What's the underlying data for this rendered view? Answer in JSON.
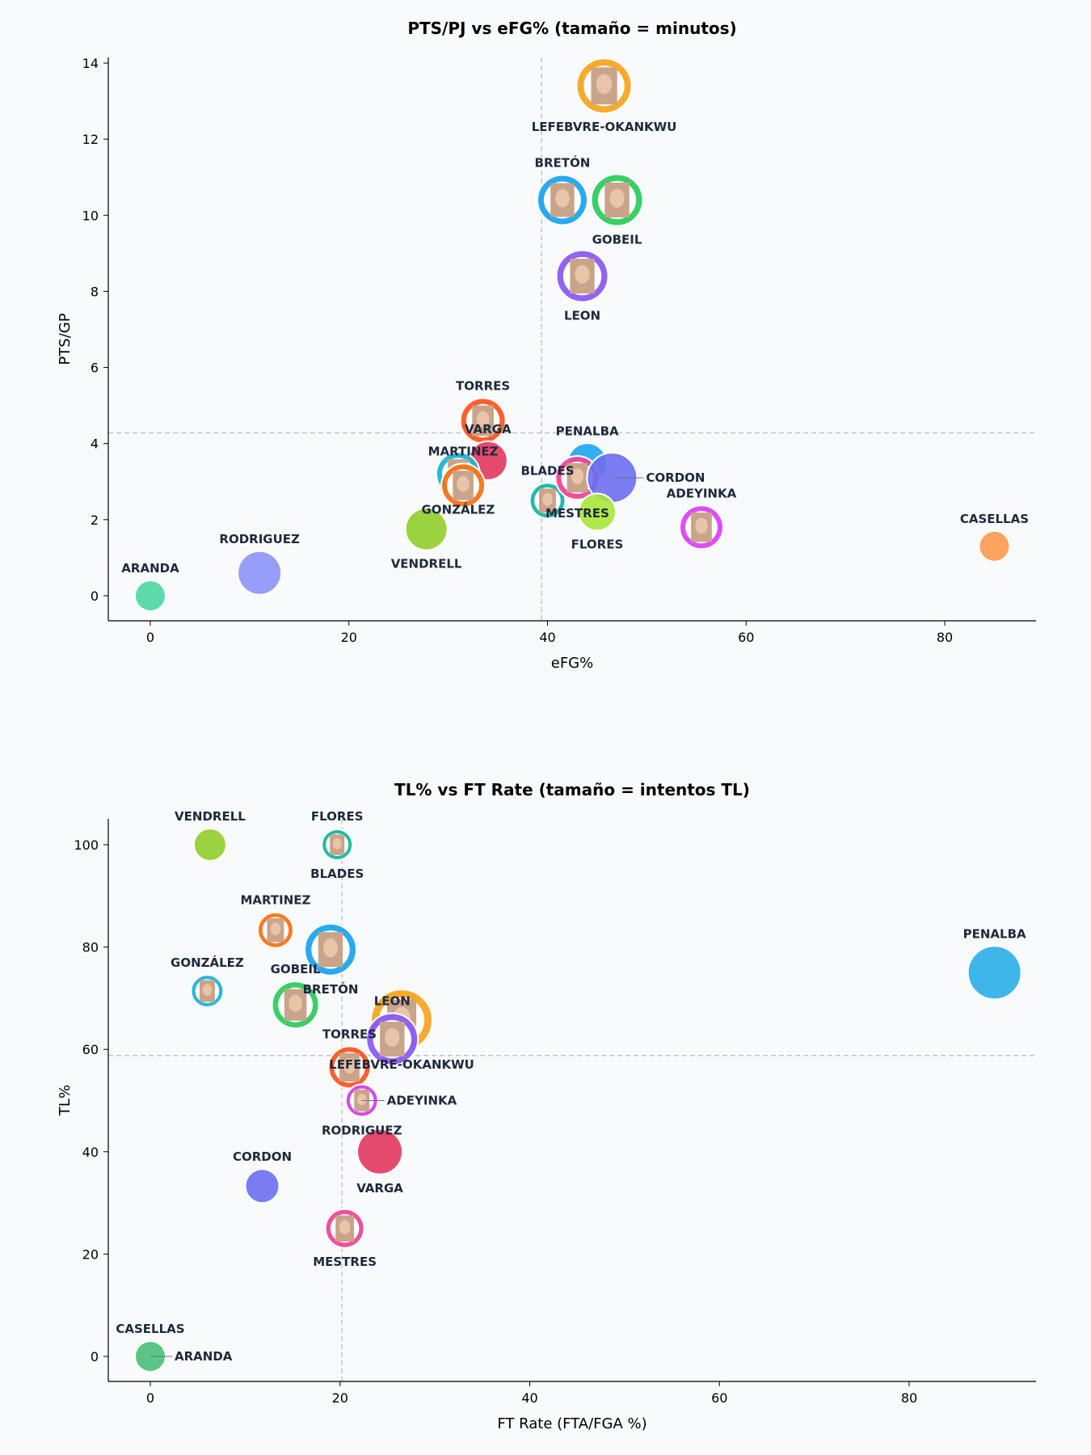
{
  "chart_data": [
    {
      "type": "scatter",
      "title": "PTS/PJ vs eFG%  (tamaño = minutos)",
      "xlabel": "eFG%",
      "ylabel": "PTS/GP",
      "xlim": [
        -5,
        89
      ],
      "ylim": [
        -0.7,
        14.2
      ],
      "xticks": [
        0,
        20,
        40,
        60,
        80
      ],
      "yticks": [
        0,
        2,
        4,
        6,
        8,
        10,
        12,
        14
      ],
      "ref_lines": {
        "x": 39.4,
        "y": 4.28
      },
      "grid": false,
      "points": [
        {
          "name": "LEFEBVRE-OKANKWU",
          "x": 45.7,
          "y": 13.4,
          "size": 34,
          "color": "#f5a623",
          "photo": true
        },
        {
          "name": "BRETÓN",
          "x": 41.5,
          "y": 10.4,
          "size": 31,
          "color": "#1ca5f0",
          "photo": true
        },
        {
          "name": "GOBEIL",
          "x": 47.0,
          "y": 10.4,
          "size": 32,
          "color": "#2ecc5e",
          "photo": true
        },
        {
          "name": "LEON",
          "x": 43.5,
          "y": 8.4,
          "size": 32,
          "color": "#8b5cf6",
          "photo": true
        },
        {
          "name": "TORRES",
          "x": 33.5,
          "y": 4.6,
          "size": 28,
          "color": "#ff5722",
          "photo": true
        },
        {
          "name": "VARGA",
          "x": 34.0,
          "y": 3.55,
          "size": 24,
          "color": "#e2365f",
          "photo": false
        },
        {
          "name": "GONZÁLEZ",
          "x": 31.0,
          "y": 3.2,
          "size": 27,
          "color": "#1fb5d5",
          "photo": true
        },
        {
          "name": "MARTINEZ",
          "x": 31.5,
          "y": 2.9,
          "size": 27,
          "color": "#f97316",
          "photo": true
        },
        {
          "name": "VENDRELL",
          "x": 27.8,
          "y": 1.75,
          "size": 26,
          "color": "#8fce2a",
          "photo": false
        },
        {
          "name": "BLADES",
          "x": 40.0,
          "y": 2.5,
          "size": 22,
          "color": "#14b8a6",
          "photo": true
        },
        {
          "name": "PENALBA",
          "x": 44.0,
          "y": 3.5,
          "size": 24,
          "color": "#1ca5f0",
          "photo": false
        },
        {
          "name": "MESTRES",
          "x": 43.0,
          "y": 3.1,
          "size": 27,
          "color": "#ec4899",
          "photo": true
        },
        {
          "name": "CORDON",
          "x": 46.5,
          "y": 3.1,
          "size": 31,
          "color": "#6a6ff0",
          "photo": false
        },
        {
          "name": "FLORES",
          "x": 45.0,
          "y": 2.2,
          "size": 23,
          "color": "#a8e63a",
          "photo": false
        },
        {
          "name": "ADEYINKA",
          "x": 55.5,
          "y": 1.8,
          "size": 27,
          "color": "#d946ef",
          "photo": true
        },
        {
          "name": "CASELLAS",
          "x": 85.0,
          "y": 1.3,
          "size": 19,
          "color": "#fb9a4b",
          "photo": false
        },
        {
          "name": "RODRIGUEZ",
          "x": 11.0,
          "y": 0.6,
          "size": 27,
          "color": "#8c93f8",
          "photo": false
        },
        {
          "name": "ARANDA",
          "x": 0.0,
          "y": 0.0,
          "size": 19,
          "color": "#4ad6a0",
          "photo": false
        }
      ]
    },
    {
      "type": "scatter",
      "title": "TL% vs FT Rate  (tamaño = intentos TL)",
      "xlabel": "FT Rate (FTA/FGA %)",
      "ylabel": "TL%",
      "xlim": [
        -4,
        93
      ],
      "ylim": [
        -5,
        105
      ],
      "xticks": [
        0,
        20,
        40,
        60,
        80
      ],
      "yticks": [
        0,
        20,
        40,
        60,
        80,
        100
      ],
      "ref_lines": {
        "x": 20.2,
        "y": 58.8
      },
      "grid": false,
      "points": [
        {
          "name": "VENDRELL",
          "x": 6.3,
          "y": 100,
          "size": 20,
          "color": "#8fce2a",
          "photo": false
        },
        {
          "name": "FLORES",
          "x": 19.7,
          "y": 100,
          "size": 20,
          "color": "#a8e63a",
          "photo": false
        },
        {
          "name": "BLADES",
          "x": 19.7,
          "y": 100,
          "size": 19,
          "color": "#14b8a6",
          "photo": true
        },
        {
          "name": "MARTINEZ",
          "x": 13.2,
          "y": 83.3,
          "size": 22,
          "color": "#f97316",
          "photo": true
        },
        {
          "name": "BRETÓN",
          "x": 19.0,
          "y": 79.5,
          "size": 32,
          "color": "#1ca5f0",
          "photo": true
        },
        {
          "name": "GONZÁLEZ",
          "x": 6.0,
          "y": 71.4,
          "size": 20,
          "color": "#1fb5d5",
          "photo": true
        },
        {
          "name": "GOBEIL",
          "x": 15.3,
          "y": 68.7,
          "size": 29,
          "color": "#2ecc5e",
          "photo": true
        },
        {
          "name": "LEFEBVRE-OKANKWU",
          "x": 26.5,
          "y": 65.7,
          "size": 38,
          "color": "#f5a623",
          "photo": true
        },
        {
          "name": "LEON",
          "x": 25.5,
          "y": 62.0,
          "size": 32,
          "color": "#8b5cf6",
          "photo": true
        },
        {
          "name": "TORRES",
          "x": 21.0,
          "y": 56.5,
          "size": 26,
          "color": "#ff5722",
          "photo": true
        },
        {
          "name": "RODRIGUEZ",
          "x": 22.3,
          "y": 50.0,
          "size": 20,
          "color": "#8c93f8",
          "photo": false
        },
        {
          "name": "ADEYINKA",
          "x": 22.3,
          "y": 50.0,
          "size": 20,
          "color": "#d946ef",
          "photo": true
        },
        {
          "name": "VARGA",
          "x": 24.2,
          "y": 40.0,
          "size": 28,
          "color": "#e2365f",
          "photo": false
        },
        {
          "name": "CORDON",
          "x": 11.8,
          "y": 33.3,
          "size": 21,
          "color": "#6a6ff0",
          "photo": false
        },
        {
          "name": "MESTRES",
          "x": 20.5,
          "y": 25.0,
          "size": 24,
          "color": "#ec4899",
          "photo": true
        },
        {
          "name": "PENALBA",
          "x": 89.0,
          "y": 75.0,
          "size": 33,
          "color": "#2aaee8",
          "photo": false
        },
        {
          "name": "CASELLAS",
          "x": 0.0,
          "y": 0.0,
          "size": 19,
          "color": "#fb9a4b",
          "photo": false
        },
        {
          "name": "ARANDA",
          "x": 0.0,
          "y": 0.0,
          "size": 19,
          "color": "#4ac98a",
          "photo": false
        }
      ]
    }
  ]
}
